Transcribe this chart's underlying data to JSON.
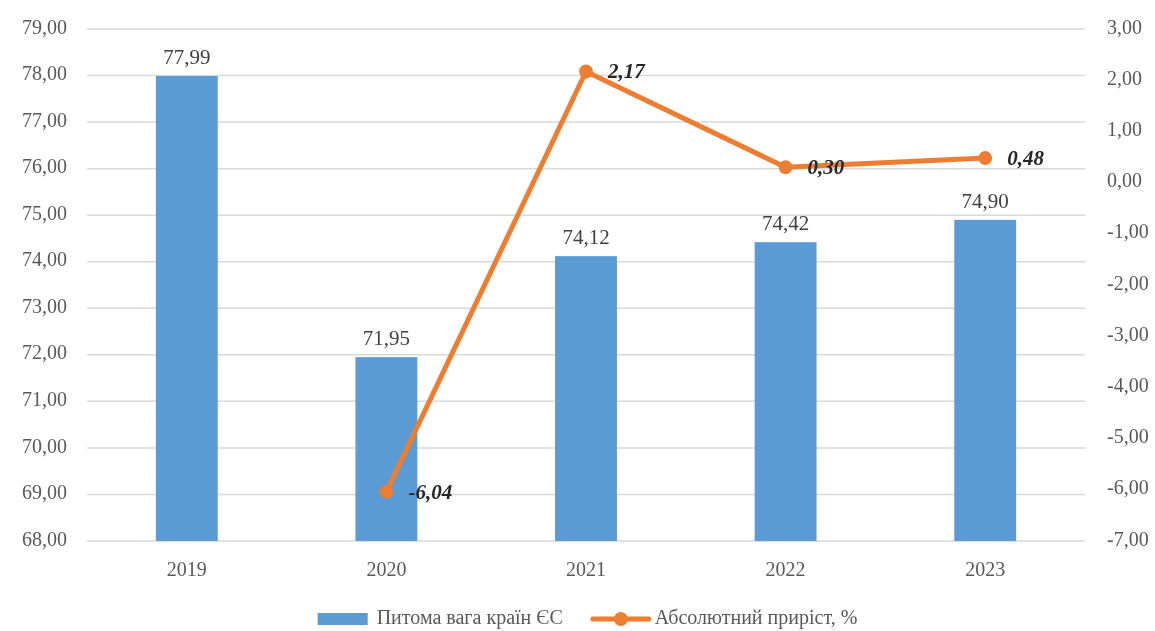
{
  "chart_data": {
    "type": "bar",
    "categories": [
      "2019",
      "2020",
      "2021",
      "2022",
      "2023"
    ],
    "series": [
      {
        "name": "Питома вага країн ЄС",
        "color": "#5b9bd5",
        "values": [
          77.99,
          71.95,
          74.12,
          74.42,
          74.9
        ],
        "value_labels": [
          "77,99",
          "71,95",
          "74,12",
          "74,42",
          "74,90"
        ]
      },
      {
        "name": "Абсолютний приріст, %",
        "type": "line",
        "axis": "y2",
        "color": "#ed7d31",
        "values": [
          null,
          -6.04,
          2.17,
          0.3,
          0.48
        ],
        "value_labels": [
          null,
          "-6,04",
          "2,17",
          "0,30",
          "0,48"
        ]
      }
    ],
    "ylim": [
      68,
      79
    ],
    "yticks": [
      {
        "value": 68,
        "label": "68,00"
      },
      {
        "value": 69,
        "label": "69,00"
      },
      {
        "value": 70,
        "label": "70,00"
      },
      {
        "value": 71,
        "label": "71,00"
      },
      {
        "value": 72,
        "label": "72,00"
      },
      {
        "value": 73,
        "label": "73,00"
      },
      {
        "value": 74,
        "label": "74,00"
      },
      {
        "value": 75,
        "label": "75,00"
      },
      {
        "value": 76,
        "label": "76,00"
      },
      {
        "value": 77,
        "label": "77,00"
      },
      {
        "value": 78,
        "label": "78,00"
      },
      {
        "value": 79,
        "label": "79,00"
      }
    ],
    "y2lim": [
      -7,
      3
    ],
    "y2ticks": [
      {
        "value": -7,
        "label": "-7,00"
      },
      {
        "value": -6,
        "label": "-6,00"
      },
      {
        "value": -5,
        "label": "-5,00"
      },
      {
        "value": -4,
        "label": "-4,00"
      },
      {
        "value": -3,
        "label": "-3,00"
      },
      {
        "value": -2,
        "label": "-2,00"
      },
      {
        "value": -1,
        "label": "-1,00"
      },
      {
        "value": 0,
        "label": "0,00"
      },
      {
        "value": 1,
        "label": "1,00"
      },
      {
        "value": 2,
        "label": "2,00"
      },
      {
        "value": 3,
        "label": "3,00"
      }
    ],
    "grid": "y",
    "legend": "bottom",
    "marker": "circle",
    "line_style": "solid"
  }
}
